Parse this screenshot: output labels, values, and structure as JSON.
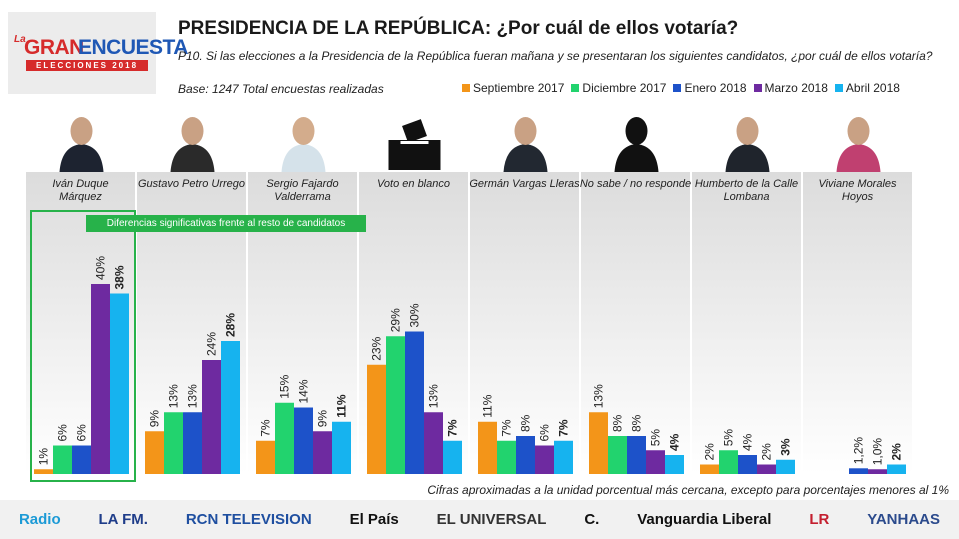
{
  "logo": {
    "pre": "La",
    "word1": "GRAN",
    "word2": "ENCUESTA",
    "sub": "ELECCIONES 2018"
  },
  "title": "PRESIDENCIA DE LA REPÚBLICA: ¿Por cuál de ellos votaría?",
  "question": "P10. Si las elecciones a la Presidencia de la República fueran mañana y se presentaran los siguientes candidatos, ¿por cuál de ellos votaría?",
  "base": "Base: 1247 Total encuestas realizadas",
  "colors": [
    "#f39519",
    "#22d36e",
    "#1d52c9",
    "#6e2aa0",
    "#16b3ef"
  ],
  "significance_label": "Diferencias significativas frente al resto de candidatos",
  "footnote": "Cifras aproximadas a la unidad porcentual más cercana, excepto para porcentajes menores al 1%",
  "sponsors": [
    "Radio",
    "LA FM.",
    "RCN TELEVISION",
    "El País",
    "EL UNIVERSAL",
    "C.",
    "Vanguardia Liberal",
    "LR",
    "YANHAAS"
  ],
  "chart_data": {
    "type": "bar",
    "title": "PRESIDENCIA DE LA REPÚBLICA: ¿Por cuál de ellos votaría?",
    "ylabel": "%",
    "ylim": [
      0,
      45
    ],
    "categories": [
      "Iván Duque Márquez",
      "Gustavo Petro Urrego",
      "Sergio Fajardo Valderrama",
      "Voto en blanco",
      "Germán Vargas Lleras",
      "No sabe / no responde",
      "Humberto de la Calle Lombana",
      "Viviane Morales Hoyos"
    ],
    "series": [
      {
        "name": "Septiembre 2017",
        "values": [
          1,
          9,
          7,
          23,
          11,
          13,
          2,
          null
        ],
        "labels": [
          "1%",
          "9%",
          "7%",
          "23%",
          "11%",
          "13%",
          "2%",
          ""
        ]
      },
      {
        "name": "Diciembre 2017",
        "values": [
          6,
          13,
          15,
          29,
          7,
          8,
          5,
          null
        ],
        "labels": [
          "6%",
          "13%",
          "15%",
          "29%",
          "7%",
          "8%",
          "5%",
          ""
        ]
      },
      {
        "name": "Enero 2018",
        "values": [
          6,
          13,
          14,
          30,
          8,
          8,
          4,
          1.2
        ],
        "labels": [
          "6%",
          "13%",
          "14%",
          "30%",
          "8%",
          "8%",
          "4%",
          "1,2%"
        ]
      },
      {
        "name": "Marzo 2018",
        "values": [
          40,
          24,
          9,
          13,
          6,
          5,
          2,
          1.0
        ],
        "labels": [
          "40%",
          "24%",
          "9%",
          "13%",
          "6%",
          "5%",
          "2%",
          "1,0%"
        ]
      },
      {
        "name": "Abril 2018",
        "values": [
          38,
          28,
          11,
          7,
          7,
          4,
          3,
          2
        ],
        "labels": [
          "38%",
          "28%",
          "11%",
          "7%",
          "7%",
          "4%",
          "3%",
          "2%"
        ]
      }
    ]
  }
}
